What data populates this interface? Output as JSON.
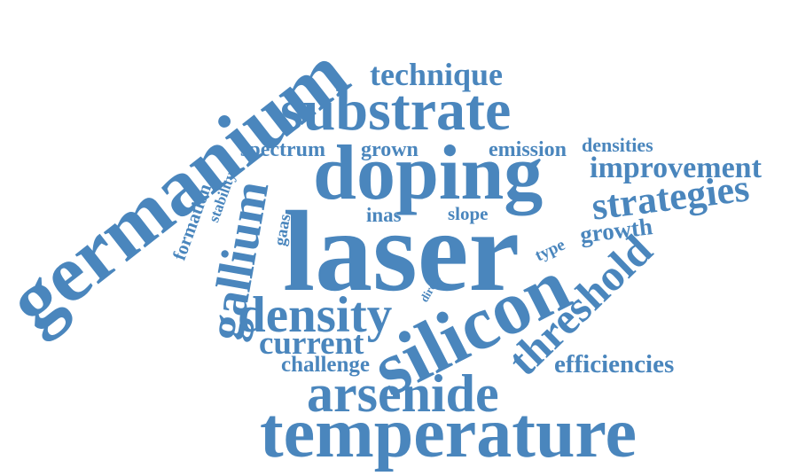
{
  "colors": {
    "word": "#4a86bd",
    "background": "#ffffff"
  },
  "words": {
    "germanium": "germanium",
    "technique": "technique",
    "substrate": "substrate",
    "spectrum": "spectrum",
    "grown": "grown",
    "emission": "emission",
    "densities": "densities",
    "doping": "doping",
    "improvement": "improvement",
    "stability": "stability",
    "formation": "formation",
    "gallium": "gallium",
    "gaas": "gaas",
    "inas": "inas",
    "slope": "slope",
    "strategies": "strategies",
    "laser": "laser",
    "growth": "growth",
    "type": "type",
    "threshold": "threshold",
    "density": "density",
    "direct": "direct",
    "silicon": "silicon",
    "current": "current",
    "challenge": "challenge",
    "efficiencies": "efficiencies",
    "arsenide": "arsenide",
    "temperature": "temperature"
  }
}
